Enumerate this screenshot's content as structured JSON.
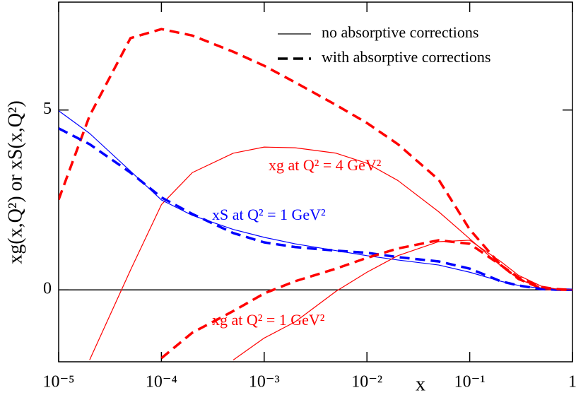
{
  "chart_data": {
    "type": "line",
    "x_label": "x",
    "y_label": "xg(x,Q²)  or  xS(x,Q²)",
    "x": [
      1e-05,
      2e-05,
      5e-05,
      0.0001,
      0.0002,
      0.0005,
      0.001,
      0.002,
      0.005,
      0.01,
      0.02,
      0.05,
      0.1,
      0.2,
      0.3,
      0.5,
      0.7,
      1
    ],
    "xlim": [
      1e-05,
      1
    ],
    "xscale": "log",
    "xticks": [
      {
        "value": 1e-05,
        "label": "10⁻⁵"
      },
      {
        "value": 0.0001,
        "label": "10⁻⁴"
      },
      {
        "value": 0.001,
        "label": "10⁻³"
      },
      {
        "value": 0.01,
        "label": "10⁻²"
      },
      {
        "value": 0.1,
        "label": "10⁻¹"
      },
      1
    ],
    "ylim": [
      -2,
      8
    ],
    "yticks": [
      0,
      5
    ],
    "legend": [
      {
        "label": "no absorptive corrections",
        "dashed": false
      },
      {
        "label": "with absorptive corrections",
        "dashed": true
      }
    ],
    "annotations": [
      "xg at Q² = 4 GeV²",
      "xS at Q² = 1 GeV²",
      "xg at Q² = 1 GeV²"
    ],
    "series": [
      {
        "color": "#ff0000",
        "dashed": false,
        "values": [
          null,
          -1.95,
          0.55,
          2.37,
          3.26,
          3.8,
          3.97,
          3.95,
          3.8,
          3.52,
          3.04,
          2.17,
          1.42,
          0.67,
          0.3,
          0.04,
          0.005,
          0
        ]
      },
      {
        "color": "#ff0000",
        "dashed": true,
        "values": [
          2.51,
          4.84,
          7.0,
          7.25,
          7.07,
          6.62,
          6.23,
          5.77,
          5.14,
          4.64,
          4.05,
          3.06,
          1.68,
          0.69,
          0.3,
          0.04,
          0.005,
          0
        ]
      },
      {
        "color": "#0000ff",
        "dashed": false,
        "values": [
          4.98,
          4.35,
          3.3,
          2.5,
          2.07,
          1.68,
          1.46,
          1.28,
          1.09,
          0.95,
          0.83,
          0.69,
          0.49,
          0.24,
          0.12,
          0.04,
          0.01,
          0
        ]
      },
      {
        "color": "#0000ff",
        "dashed": true,
        "values": [
          4.49,
          4.05,
          3.26,
          2.57,
          2.11,
          1.58,
          1.32,
          1.19,
          1.09,
          1.03,
          0.91,
          0.79,
          0.59,
          0.24,
          0.12,
          0.02,
          0.005,
          0
        ]
      },
      {
        "color": "#ff0000",
        "dashed": false,
        "values": [
          null,
          null,
          null,
          null,
          null,
          -1.95,
          -1.34,
          -0.89,
          -0.04,
          0.49,
          0.95,
          1.34,
          1.38,
          0.79,
          0.4,
          0.1,
          0.02,
          0
        ]
      },
      {
        "color": "#ff0000",
        "dashed": true,
        "values": [
          null,
          null,
          null,
          -1.9,
          -1.19,
          -0.59,
          -0.1,
          0.24,
          0.59,
          0.89,
          1.15,
          1.38,
          1.28,
          0.69,
          0.34,
          0.08,
          0.02,
          0
        ]
      }
    ]
  }
}
